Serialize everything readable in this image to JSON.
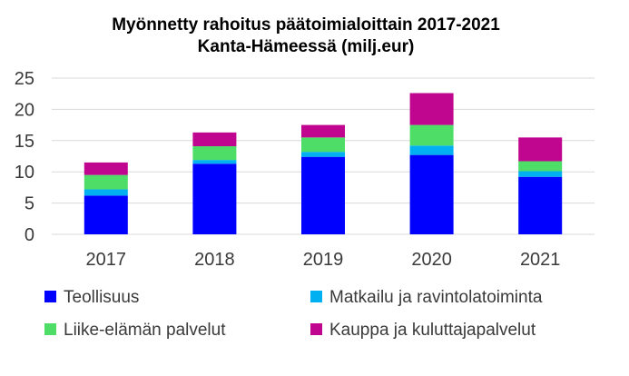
{
  "chart_data": {
    "type": "bar",
    "stacked": true,
    "title": "Myönnetty rahoitus päätoimialoittain 2017-2021",
    "subtitle": "Kanta-Hämeessä (milj.eur)",
    "xlabel": "",
    "ylabel": "",
    "ylim": [
      0,
      25
    ],
    "yticks": [
      0,
      5,
      10,
      15,
      20,
      25
    ],
    "grid": true,
    "legend_position": "bottom",
    "categories": [
      "2017",
      "2018",
      "2019",
      "2020",
      "2021"
    ],
    "series": [
      {
        "name": "Teollisuus",
        "color": "#0000ff",
        "values": [
          6.2,
          11.3,
          12.4,
          12.7,
          9.2
        ]
      },
      {
        "name": "Matkailu ja ravintolatoiminta",
        "color": "#00b0f0",
        "values": [
          1.0,
          0.6,
          0.8,
          1.5,
          0.9
        ]
      },
      {
        "name": "Liike-elämän palvelut",
        "color": "#4ede67",
        "values": [
          2.3,
          2.2,
          2.3,
          3.3,
          1.6
        ]
      },
      {
        "name": "Kauppa ja kuluttajapalvelut",
        "color": "#c0068f",
        "values": [
          2.0,
          2.2,
          2.0,
          5.1,
          3.8
        ]
      }
    ]
  }
}
